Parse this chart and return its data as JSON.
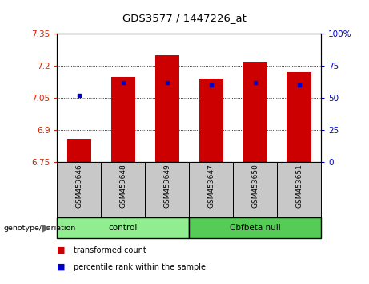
{
  "title": "GDS3577 / 1447226_at",
  "samples": [
    "GSM453646",
    "GSM453648",
    "GSM453649",
    "GSM453647",
    "GSM453650",
    "GSM453651"
  ],
  "red_values": [
    6.86,
    7.15,
    7.25,
    7.14,
    7.22,
    7.17
  ],
  "blue_percentiles": [
    52,
    62,
    62,
    60,
    62,
    60
  ],
  "ylim_left": [
    6.75,
    7.35
  ],
  "ylim_right": [
    0,
    100
  ],
  "yticks_left": [
    6.75,
    6.9,
    7.05,
    7.2,
    7.35
  ],
  "yticks_right": [
    0,
    25,
    50,
    75,
    100
  ],
  "ytick_labels_left": [
    "6.75",
    "6.9",
    "7.05",
    "7.2",
    "7.35"
  ],
  "ytick_labels_right": [
    "0",
    "25",
    "50",
    "75",
    "100%"
  ],
  "groups": [
    {
      "label": "control",
      "indices": [
        0,
        1,
        2
      ],
      "color": "#90EE90"
    },
    {
      "label": "Cbfbeta null",
      "indices": [
        3,
        4,
        5
      ],
      "color": "#55CC55"
    }
  ],
  "bar_color": "#CC0000",
  "dot_color": "#0000CC",
  "left_axis_color": "#CC2200",
  "right_axis_color": "#0000BB",
  "background_plot": "#FFFFFF",
  "background_xtick": "#C8C8C8",
  "grid_color": "#000000",
  "genotype_label": "genotype/variation",
  "legend_items": [
    "transformed count",
    "percentile rank within the sample"
  ]
}
